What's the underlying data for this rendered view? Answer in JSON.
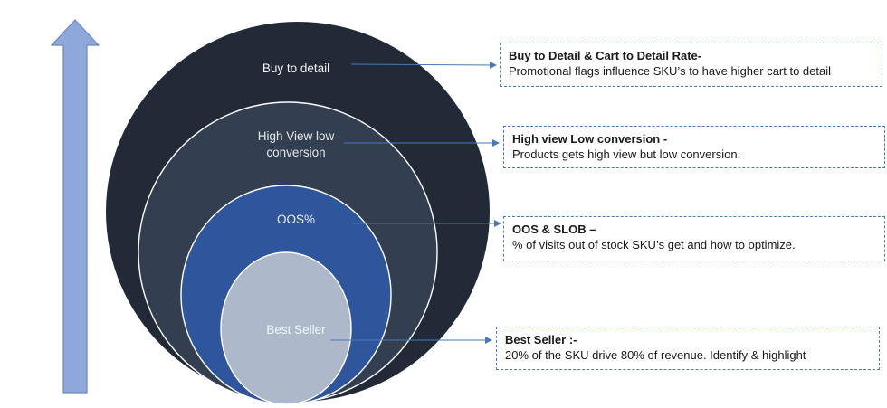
{
  "colors": {
    "arrow_fill": "#8fa8dc",
    "arrow_stroke": "#6a87c6",
    "ring_outer": "#222a38",
    "ring_second": "#333f51",
    "ring_third": "#2f559c",
    "ring_inner": "#adb9ca",
    "ring_outline": "#ffffff",
    "connector": "#4a7ab5",
    "callout_border": "#4a7ab5"
  },
  "layers": [
    {
      "id": "buy-to-detail",
      "circle_label_lines": [
        "Buy to detail"
      ],
      "callout_title": "Buy to Detail & Cart to Detail Rate-",
      "callout_desc": "Promotional  flags influence SKU’s to have higher cart to detail"
    },
    {
      "id": "high-view-low-conversion",
      "circle_label_lines": [
        "High View low",
        "conversion"
      ],
      "callout_title": "High view Low conversion  -",
      "callout_desc": "Products gets high view but low conversion."
    },
    {
      "id": "oos",
      "circle_label_lines": [
        "OOS%"
      ],
      "callout_title": "OOS & SLOB –",
      "callout_desc": "% of visits out of stock SKU’s get and how to optimize."
    },
    {
      "id": "best-seller",
      "circle_label_lines": [
        "Best Seller"
      ],
      "callout_title": "Best Seller :-",
      "callout_desc": "20% of the SKU drive 80% of revenue.  Identify & highlight"
    }
  ]
}
